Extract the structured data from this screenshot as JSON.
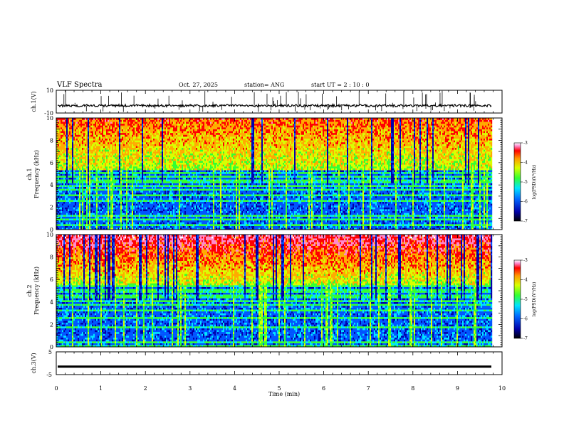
{
  "header": {
    "title": "VLF Spectra",
    "date": "Oct. 27, 2025",
    "station": "station= ANG",
    "start_ut": "start  UT =   2 : 10 : 0"
  },
  "colors": {
    "colormap": [
      "#000033",
      "#0000aa",
      "#0055ff",
      "#00e5ff",
      "#33ff33",
      "#d8ff00",
      "#ffaa00",
      "#ff0000",
      "#ff88cc",
      "#ffffff"
    ]
  },
  "chart_data": [
    {
      "type": "line",
      "name": "ch1-waveform",
      "ylabel": "ch.1(V)",
      "xlim": [
        0,
        10
      ],
      "ylim": [
        -10,
        10
      ],
      "yticks": [
        "10",
        "-10"
      ],
      "baseline": -3.5,
      "visible_xmax": 9.8
    },
    {
      "type": "heatmap",
      "name": "ch1-spectrogram",
      "ylabel_top": "ch.1",
      "ylabel": "Frequency (kHz)",
      "xlim": [
        0,
        10
      ],
      "ylim": [
        0,
        10
      ],
      "yticks": [
        "0",
        "2",
        "4",
        "6",
        "8",
        "10"
      ],
      "visible_xmax": 9.8,
      "colorbar": {
        "label": "log(PSD)(V²/Hz)",
        "ticks": [
          "-3",
          "-4",
          "-5",
          "-6",
          "-7"
        ],
        "range": [
          -7,
          -3
        ]
      }
    },
    {
      "type": "heatmap",
      "name": "ch2-spectrogram",
      "ylabel_top": "ch.2",
      "ylabel": "Frequency (kHz)",
      "xlim": [
        0,
        10
      ],
      "ylim": [
        0,
        10
      ],
      "yticks": [
        "0",
        "2",
        "4",
        "6",
        "8",
        "10"
      ],
      "visible_xmax": 9.8,
      "colorbar": {
        "label": "log(PSD)(V²/Hz)",
        "ticks": [
          "-3",
          "-4",
          "-5",
          "-6",
          "-7"
        ],
        "range": [
          -7,
          -3
        ]
      }
    },
    {
      "type": "line",
      "name": "ch3-waveform",
      "ylabel": "ch.3(V)",
      "xlabel": "Time (min)",
      "xlim": [
        0,
        10
      ],
      "ylim": [
        -5,
        5
      ],
      "yticks": [
        "5",
        "-5"
      ],
      "xticks": [
        "0",
        "1",
        "2",
        "3",
        "4",
        "5",
        "6",
        "7",
        "8",
        "9",
        "10"
      ],
      "baseline": -1.5,
      "visible_xmax": 9.8
    }
  ]
}
